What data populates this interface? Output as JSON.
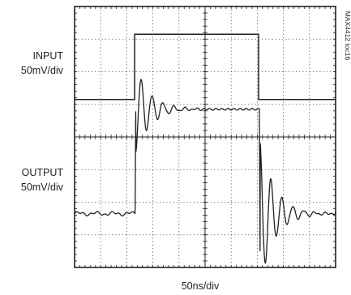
{
  "chart_data": {
    "type": "line",
    "subtype": "oscilloscope-capture",
    "figure_code": "MAX4412 toc16",
    "x_label": "50ns/div",
    "x_divisions": 10,
    "y_divisions": 8,
    "grid": "dotted",
    "time_unit_per_div_ns": 50,
    "series": [
      {
        "name": "INPUT",
        "scale": "50mV/div",
        "low_level_div": 1.15,
        "high_level_div": 3.15,
        "edges_div": [
          2.3,
          7.05
        ]
      },
      {
        "name": "OUTPUT",
        "scale": "50mV/div",
        "low_level_div": -2.35,
        "high_level_div": 0.85,
        "rising_edge_div": 2.32,
        "falling_edge_div": 7.08,
        "peak_overshoot_div": 1.9,
        "peak_undershoot_div": 1.4,
        "ringing_period_div": 0.42
      }
    ]
  }
}
